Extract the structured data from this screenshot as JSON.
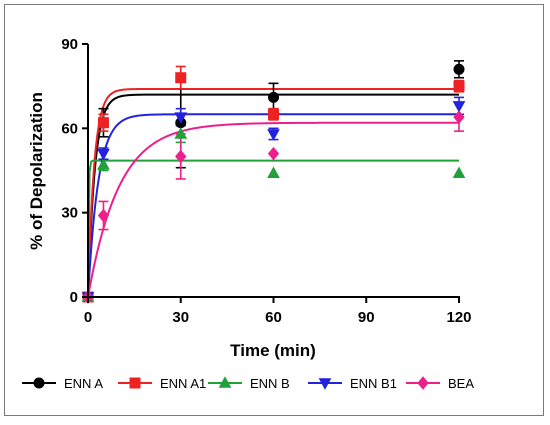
{
  "chart_data": {
    "type": "scatter",
    "xlabel": "Time (min)",
    "ylabel": "% of Depolarization",
    "xlim": [
      0,
      120
    ],
    "ylim": [
      0,
      90
    ],
    "xticks": [
      0,
      30,
      60,
      90,
      120
    ],
    "yticks": [
      0,
      30,
      60,
      90
    ],
    "grid": false,
    "legend_position": "bottom",
    "series": [
      {
        "name": "ENN A",
        "color": "#000000",
        "marker": "circle",
        "points": [
          {
            "x": 0,
            "y": 0,
            "err": 0
          },
          {
            "x": 5,
            "y": 62,
            "err": 5
          },
          {
            "x": 30,
            "y": 62,
            "err": 16
          },
          {
            "x": 60,
            "y": 71,
            "err": 5
          },
          {
            "x": 120,
            "y": 81,
            "err": 3
          }
        ],
        "fit": {
          "plateau": 72,
          "k": 0.45
        }
      },
      {
        "name": "ENN A1",
        "color": "#ee2222",
        "marker": "square",
        "points": [
          {
            "x": 0,
            "y": 0,
            "err": 0
          },
          {
            "x": 5,
            "y": 62,
            "err": 3
          },
          {
            "x": 30,
            "y": 78,
            "err": 4
          },
          {
            "x": 60,
            "y": 65,
            "err": 2
          },
          {
            "x": 120,
            "y": 75,
            "err": 2
          }
        ],
        "fit": {
          "plateau": 74,
          "k": 0.5
        }
      },
      {
        "name": "ENN B",
        "color": "#22a03a",
        "marker": "triangle-up",
        "points": [
          {
            "x": 0,
            "y": 0,
            "err": 0
          },
          {
            "x": 5,
            "y": 47,
            "err": 2
          },
          {
            "x": 30,
            "y": 58,
            "err": 3
          },
          {
            "x": 60,
            "y": 44,
            "err": 0
          },
          {
            "x": 120,
            "y": 44,
            "err": 0
          }
        ],
        "fit": {
          "plateau": 48.5,
          "k": 5
        }
      },
      {
        "name": "ENN B1",
        "color": "#2323dd",
        "marker": "triangle-down",
        "points": [
          {
            "x": 0,
            "y": 0,
            "err": 0
          },
          {
            "x": 5,
            "y": 51,
            "err": 2
          },
          {
            "x": 30,
            "y": 64,
            "err": 3
          },
          {
            "x": 60,
            "y": 58,
            "err": 2
          },
          {
            "x": 120,
            "y": 68,
            "err": 3
          }
        ],
        "fit": {
          "plateau": 65,
          "k": 0.3
        }
      },
      {
        "name": "BEA",
        "color": "#ee1f8b",
        "marker": "diamond",
        "points": [
          {
            "x": 0,
            "y": 0,
            "err": 0
          },
          {
            "x": 5,
            "y": 29,
            "err": 5
          },
          {
            "x": 30,
            "y": 50,
            "err": 8
          },
          {
            "x": 60,
            "y": 51,
            "err": 0
          },
          {
            "x": 120,
            "y": 64,
            "err": 5
          }
        ],
        "fit": {
          "plateau": 62,
          "k": 0.1
        }
      }
    ]
  }
}
